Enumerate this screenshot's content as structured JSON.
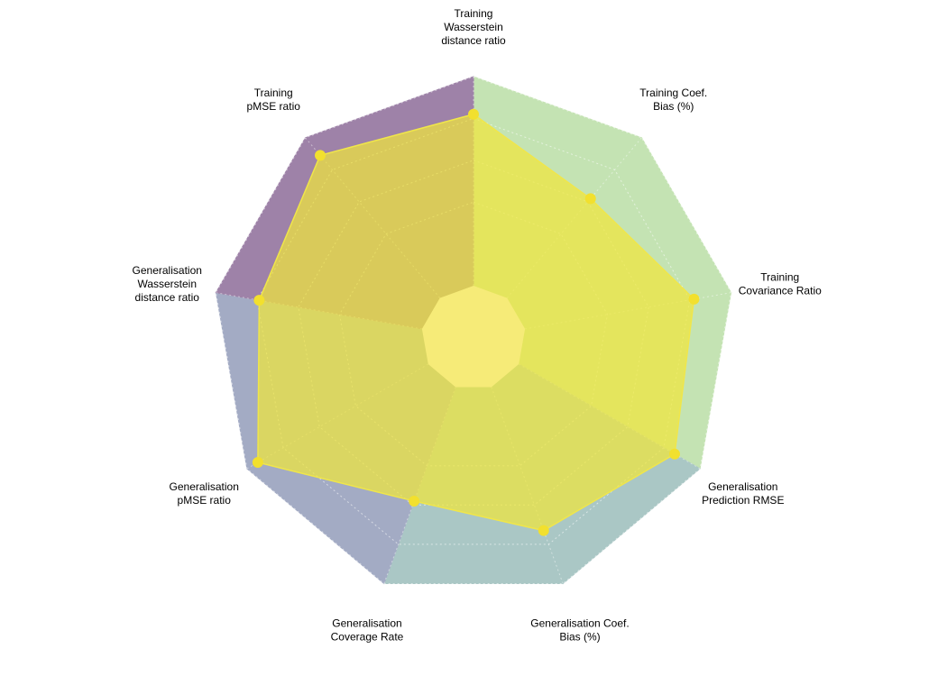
{
  "chart_data": {
    "type": "radar",
    "axes": [
      {
        "label_lines": [
          "Training",
          "Wasserstein",
          "distance ratio"
        ],
        "value": 0.82,
        "sector": "green"
      },
      {
        "label_lines": [
          "Training Coef.",
          "Bias (%)"
        ],
        "value": 0.62,
        "sector": "green"
      },
      {
        "label_lines": [
          "Training",
          "Covariance Ratio"
        ],
        "value": 0.82,
        "sector": "green"
      },
      {
        "label_lines": [
          "Generalisation",
          "Prediction RMSE"
        ],
        "value": 0.86,
        "sector": "teal"
      },
      {
        "label_lines": [
          "Generalisation Coef.",
          "Bias (%)"
        ],
        "value": 0.73,
        "sector": "teal"
      },
      {
        "label_lines": [
          "Generalisation",
          "Coverage Rate"
        ],
        "value": 0.58,
        "sector": "slate"
      },
      {
        "label_lines": [
          "Generalisation",
          "pMSE ratio"
        ],
        "value": 0.94,
        "sector": "slate"
      },
      {
        "label_lines": [
          "Generalisation",
          "Wasserstein",
          "distance ratio"
        ],
        "value": 0.79,
        "sector": "purple"
      },
      {
        "label_lines": [
          "Training",
          "pMSE ratio"
        ],
        "value": 0.89,
        "sector": "purple"
      }
    ],
    "range": [
      0,
      1
    ],
    "inner_hole_fraction": 0.2,
    "sector_colors": {
      "green": "#c4e3b3",
      "teal": "#aac7c5",
      "slate": "#a3abc4",
      "purple": "#9e82a8"
    },
    "series_color": "#f0e64a",
    "series_fill": "rgba(240,230,60,0.72)",
    "center_color": "#f6eb78",
    "grid": true
  }
}
